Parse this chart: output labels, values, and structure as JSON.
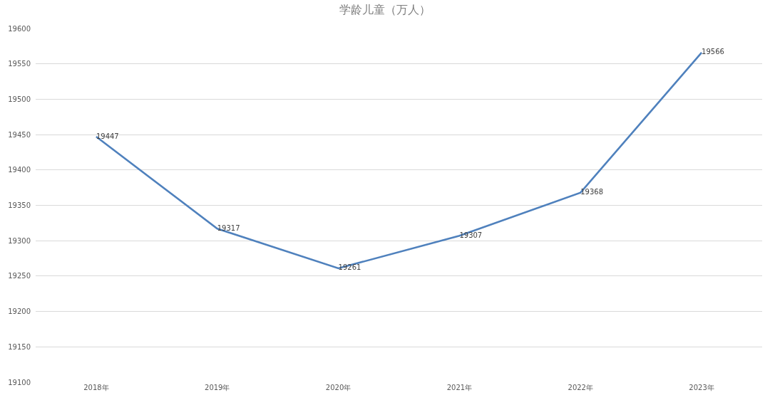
{
  "chart_data": {
    "type": "line",
    "title": "学龄儿童（万人）",
    "categories": [
      "2018年",
      "2019年",
      "2020年",
      "2021年",
      "2022年",
      "2023年"
    ],
    "series": [
      {
        "color": "#4f81bd",
        "values": [
          19447,
          19317,
          19261,
          19307,
          19368,
          19566
        ]
      }
    ],
    "ylim": [
      19100,
      19600
    ],
    "yticks": [
      19100,
      19150,
      19200,
      19250,
      19300,
      19350,
      19400,
      19450,
      19500,
      19550,
      19600
    ],
    "grid": "y",
    "data_labels": true
  }
}
